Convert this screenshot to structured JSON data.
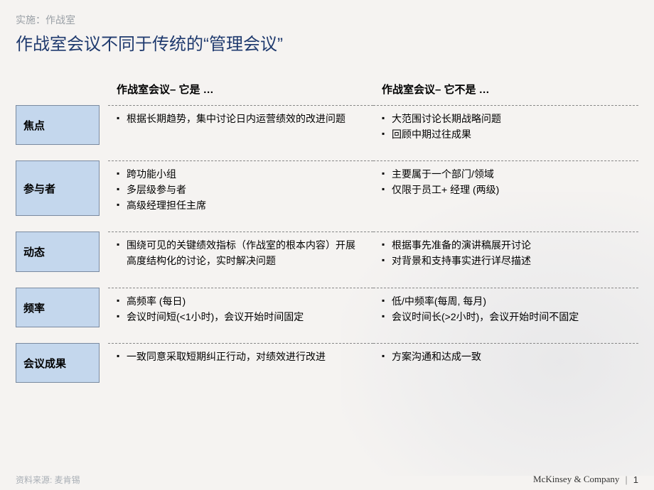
{
  "pretitle": "实施：作战室",
  "title": "作战室会议不同于传统的“管理会议”",
  "headers": {
    "is": "作战室会议– 它是 …",
    "isnot": "作战室会议– 它不是 …"
  },
  "rows": [
    {
      "label": "焦点",
      "is": [
        "根据长期趋势，集中讨论日内运营绩效的改进问题"
      ],
      "isnot": [
        "大范围讨论长期战略问题",
        "回顾中期过往成果"
      ]
    },
    {
      "label": "参与者",
      "is": [
        "跨功能小组",
        "多层级参与者",
        "高级经理担任主席"
      ],
      "isnot": [
        "主要属于一个部门/领域",
        "仅限于员工+ 经理 (两级)"
      ]
    },
    {
      "label": "动态",
      "is": [
        "围绕可见的关键绩效指标（作战室的根本内容）开展高度结构化的讨论，实时解决问题"
      ],
      "isnot": [
        "根据事先准备的演讲稿展开讨论",
        "对背景和支持事实进行详尽描述"
      ]
    },
    {
      "label": "频率",
      "is": [
        "高频率 (每日)",
        "会议时间短(<1小时)，会议开始时间固定"
      ],
      "isnot": [
        "低/中频率(每周, 每月)",
        "会议时间长(>2小时)，会议开始时间不固定"
      ]
    },
    {
      "label": "会议成果",
      "is": [
        "一致同意采取短期纠正行动，对绩效进行改进"
      ],
      "isnot": [
        "方案沟通和达成一致"
      ]
    }
  ],
  "footer": {
    "source": "资料来源: 麦肯锡",
    "company": "McKinsey & Company",
    "page": "1"
  },
  "colors": {
    "label_bg": "#c4d7ed",
    "label_border": "#7a8aa0",
    "title_color": "#1f3a6e",
    "pretitle_color": "#9aa0a6",
    "dash_color": "#888888",
    "background": "#f5f3f1"
  },
  "typography": {
    "title_fontsize": 24,
    "pretitle_fontsize": 14,
    "header_fontsize": 15,
    "body_fontsize": 14,
    "label_fontsize": 15,
    "footer_fontsize": 12
  }
}
